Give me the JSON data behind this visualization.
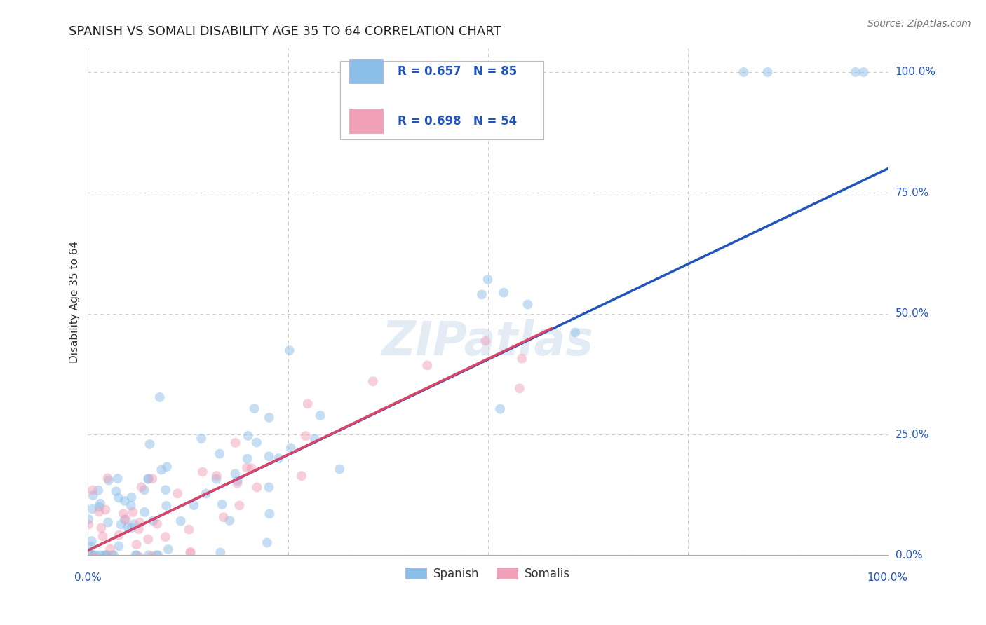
{
  "title": "SPANISH VS SOMALI DISABILITY AGE 35 TO 64 CORRELATION CHART",
  "source": "Source: ZipAtlas.com",
  "ylabel": "Disability Age 35 to 64",
  "ytick_labels": [
    "0.0%",
    "25.0%",
    "50.0%",
    "75.0%",
    "100.0%"
  ],
  "ytick_values": [
    0.0,
    0.25,
    0.5,
    0.75,
    1.0
  ],
  "watermark": "ZIPatlas",
  "legend_blue_r": "R = 0.657",
  "legend_blue_n": "N = 85",
  "legend_pink_r": "R = 0.698",
  "legend_pink_n": "N = 54",
  "legend_label_blue": "Spanish",
  "legend_label_pink": "Somalis",
  "blue_color": "#8CBFE8",
  "pink_color": "#F0A0B8",
  "blue_line_color": "#2255BB",
  "pink_line_color": "#DD4466",
  "grid_color": "#CCCCCC",
  "background_color": "#FFFFFF",
  "title_fontsize": 13,
  "axis_label_fontsize": 11,
  "tick_fontsize": 11,
  "legend_fontsize": 12,
  "source_fontsize": 10,
  "marker_size": 100,
  "marker_alpha": 0.5,
  "xlim": [
    0.0,
    1.0
  ],
  "ylim": [
    0.0,
    1.05
  ],
  "blue_line_start_x": 0.0,
  "blue_line_start_y": 0.01,
  "blue_line_end_x": 1.0,
  "blue_line_end_y": 0.8,
  "pink_line_start_x": 0.0,
  "pink_line_start_y": 0.01,
  "pink_line_end_x": 0.58,
  "pink_line_end_y": 0.47,
  "blue_seed": 42,
  "pink_seed": 7
}
